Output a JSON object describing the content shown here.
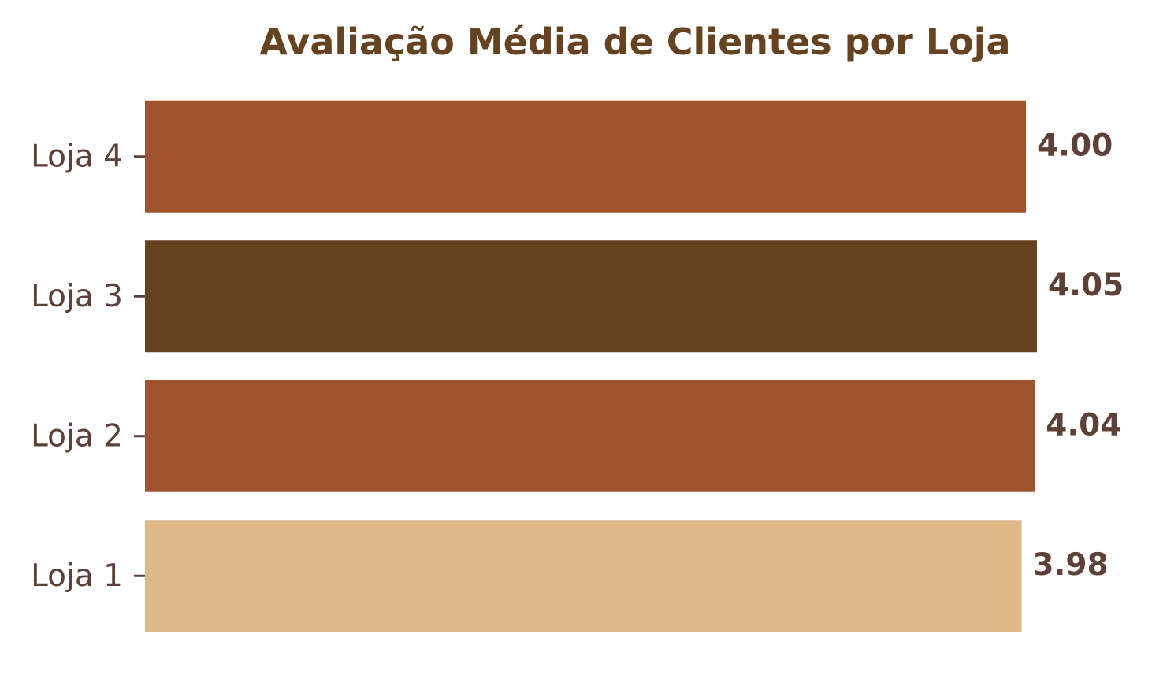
{
  "chart_data": {
    "type": "bar",
    "orientation": "horizontal",
    "title": "Avaliação Média de Clientes por Loja",
    "xlabel": "",
    "ylabel": "",
    "categories": [
      "Loja 1",
      "Loja 2",
      "Loja 3",
      "Loja 4"
    ],
    "values": [
      3.98,
      4.04,
      4.05,
      4.0
    ],
    "value_labels": [
      "3.98",
      "4.04",
      "4.05",
      "4.00"
    ],
    "colors": [
      "#deb887",
      "#a0522d",
      "#654321",
      "#a0522d"
    ],
    "xlim": [
      0,
      4.05
    ],
    "grid": false,
    "legend": "none"
  },
  "colors": {
    "title": "#654321",
    "text": "#5d4037"
  }
}
